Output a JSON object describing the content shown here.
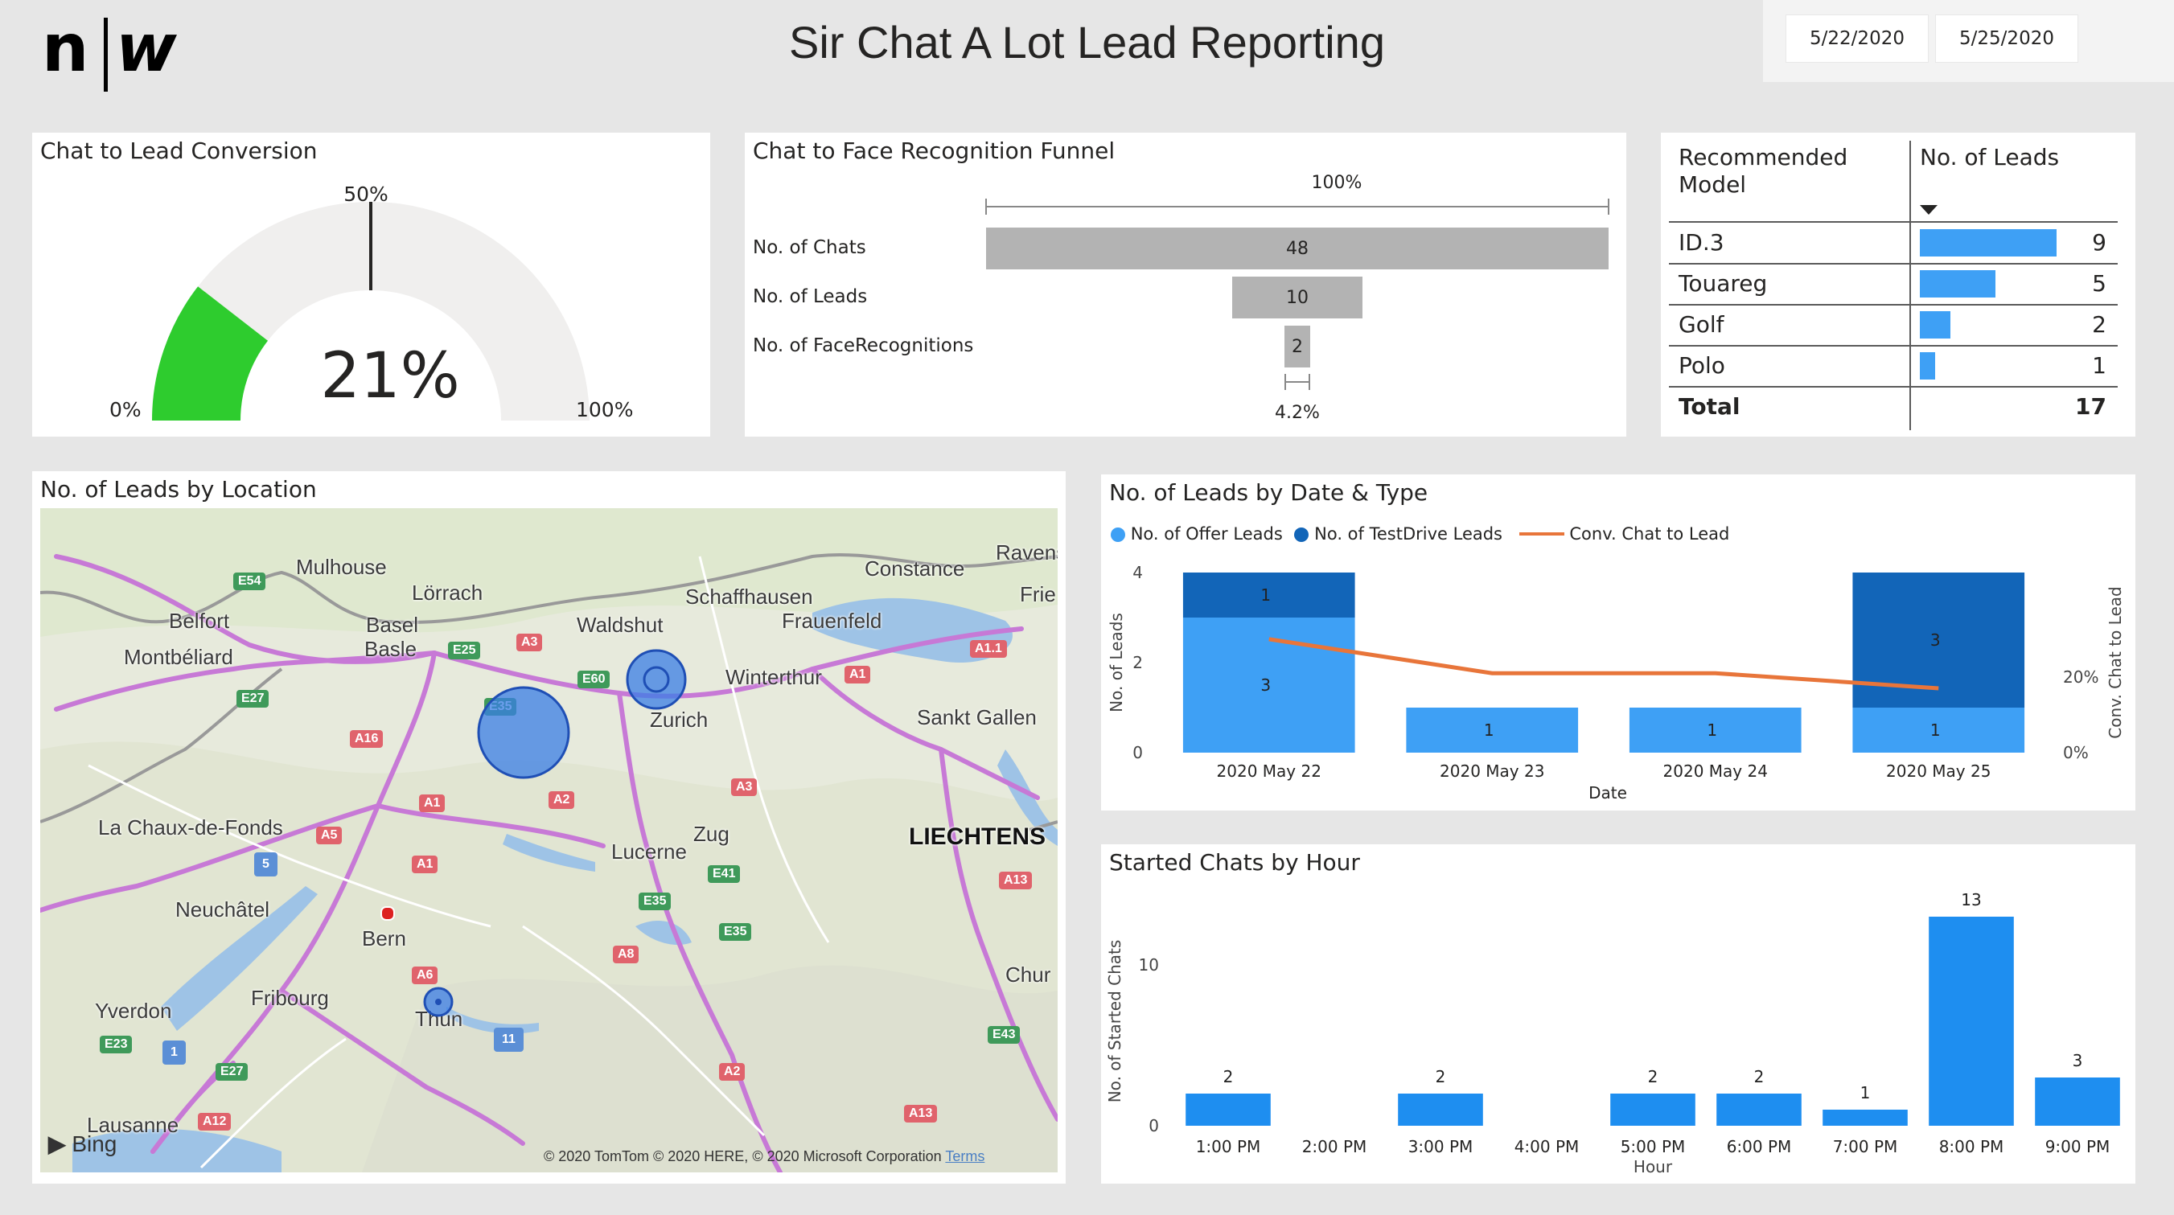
{
  "header": {
    "logo_text": "n|w",
    "title": "Sir Chat A Lot Lead Reporting",
    "date_start": "5/22/2020",
    "date_end": "5/25/2020"
  },
  "gauge": {
    "title": "Chat to Lead Conversion",
    "value_label": "21%",
    "value": 0.21,
    "min_label": "0%",
    "max_label": "100%",
    "target_label": "50%",
    "target": 0.5,
    "fill_color": "#2ecc2e",
    "track_color": "#f0efee"
  },
  "funnel": {
    "title": "Chat to Face Recognition Funnel",
    "top_pct": "100%",
    "bottom_pct": "4.2%",
    "rows": [
      {
        "label": "No. of Chats",
        "value": 48
      },
      {
        "label": "No. of Leads",
        "value": 10
      },
      {
        "label": "No. of FaceRecognitions",
        "value": 2
      }
    ]
  },
  "model_table": {
    "col1": "Recommended Model",
    "col2": "No. of Leads",
    "rows": [
      {
        "model": "ID.3",
        "leads": 9
      },
      {
        "model": "Touareg",
        "leads": 5
      },
      {
        "model": "Golf",
        "leads": 2
      },
      {
        "model": "Polo",
        "leads": 1
      }
    ],
    "total_label": "Total",
    "total_value": 17
  },
  "map": {
    "title": "No. of Leads by Location",
    "cities": [
      "Mulhouse",
      "Lörrach",
      "Ravens",
      "Belfort",
      "Basel",
      "Basle",
      "Waldshut",
      "Schaffhausen",
      "Constance",
      "Frauenfeld",
      "Montbéliard",
      "Winterthur",
      "Zurich",
      "Sankt Gallen",
      "La Chaux-de-Fonds",
      "Zug",
      "Lucerne",
      "LIECHTENS",
      "Neuchâtel",
      "Bern",
      "Fribourg",
      "Chur",
      "Yverdon",
      "Thun",
      "Lausanne",
      "Frie"
    ],
    "roads_red": [
      "A3",
      "A1.1",
      "A1",
      "A16",
      "A2",
      "A3",
      "A1",
      "A5",
      "A1",
      "A13",
      "A6",
      "A8",
      "A2",
      "A12",
      "A13"
    ],
    "roads_green": [
      "E54",
      "E25",
      "E60",
      "E27",
      "E35",
      "E41",
      "E35",
      "E35",
      "E43",
      "E23",
      "E27"
    ],
    "roads_blue": [
      "5",
      "1",
      "11"
    ],
    "attribution": "© 2020 TomTom © 2020 HERE, © 2020 Microsoft Corporation",
    "terms": "Terms",
    "bing": "Bing"
  },
  "leads_by_date": {
    "title": "No. of Leads by Date & Type",
    "legend": [
      "No. of Offer Leads",
      "No. of TestDrive Leads",
      "Conv. Chat to Lead"
    ],
    "xlabel": "Date",
    "ylabel_left": "No. of Leads",
    "ylabel_right": "Conv. Chat to Lead",
    "right_ticks": [
      "20%",
      "0%"
    ]
  },
  "chats_by_hour": {
    "title": "Started Chats by Hour",
    "xlabel": "Hour",
    "ylabel": "No. of Started Chats"
  },
  "chart_data": [
    {
      "type": "bar",
      "title": "No. of Leads by Date & Type",
      "stacked": true,
      "categories": [
        "2020 May 22",
        "2020 May 23",
        "2020 May 24",
        "2020 May 25"
      ],
      "series": [
        {
          "name": "No. of Offer Leads",
          "values": [
            3,
            1,
            1,
            1
          ],
          "color": "#3ea0f5"
        },
        {
          "name": "No. of TestDrive Leads",
          "values": [
            1,
            0,
            0,
            3
          ],
          "color": "#1265b8"
        }
      ],
      "line": {
        "name": "Conv. Chat to Lead",
        "values": [
          0.3,
          0.21,
          0.21,
          0.17
        ],
        "color": "#e8753a"
      },
      "ylim": [
        0,
        4
      ],
      "yticks": [
        0,
        2,
        4
      ],
      "xlabel": "Date",
      "ylabel": "No. of Leads",
      "y2label": "Conv. Chat to Lead",
      "y2ticks": [
        "0%",
        "20%"
      ]
    },
    {
      "type": "bar",
      "title": "Started Chats by Hour",
      "categories": [
        "1:00 PM",
        "2:00 PM",
        "3:00 PM",
        "4:00 PM",
        "5:00 PM",
        "6:00 PM",
        "7:00 PM",
        "8:00 PM",
        "9:00 PM"
      ],
      "values": [
        2,
        0,
        2,
        0,
        2,
        2,
        1,
        13,
        3
      ],
      "ylim": [
        0,
        14
      ],
      "yticks": [
        0,
        10
      ],
      "xlabel": "Hour",
      "ylabel": "No. of Started Chats",
      "color": "#1e8ef0"
    }
  ]
}
